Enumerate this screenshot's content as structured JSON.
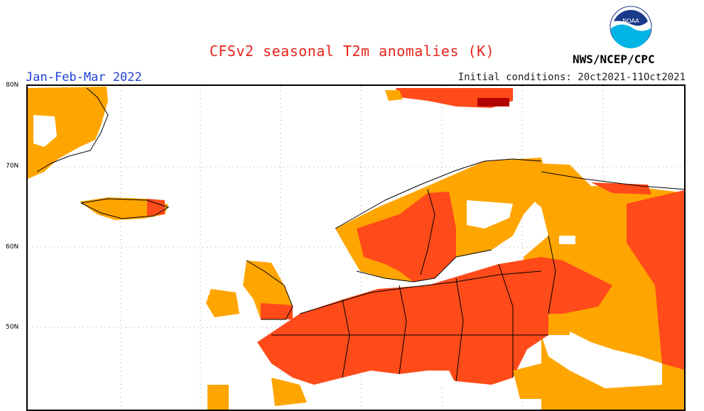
{
  "header": {
    "title": "CFSv2 seasonal T2m anomalies (K)",
    "period": "Jan-Feb-Mar 2022",
    "initial_conditions": "Initial conditions: 20ct2021-11Oct2021",
    "agency": "NWS/NCEP/CPC",
    "logo_text": "NOAA"
  },
  "map": {
    "lat_labels": [
      "80N",
      "70N",
      "60N",
      "50N"
    ],
    "colors": {
      "anomaly_low": "#ffa500",
      "anomaly_mid": "#ff4a1a",
      "anomaly_high": "#b30000",
      "land_outline": "#000000",
      "grid": "#888888"
    }
  }
}
